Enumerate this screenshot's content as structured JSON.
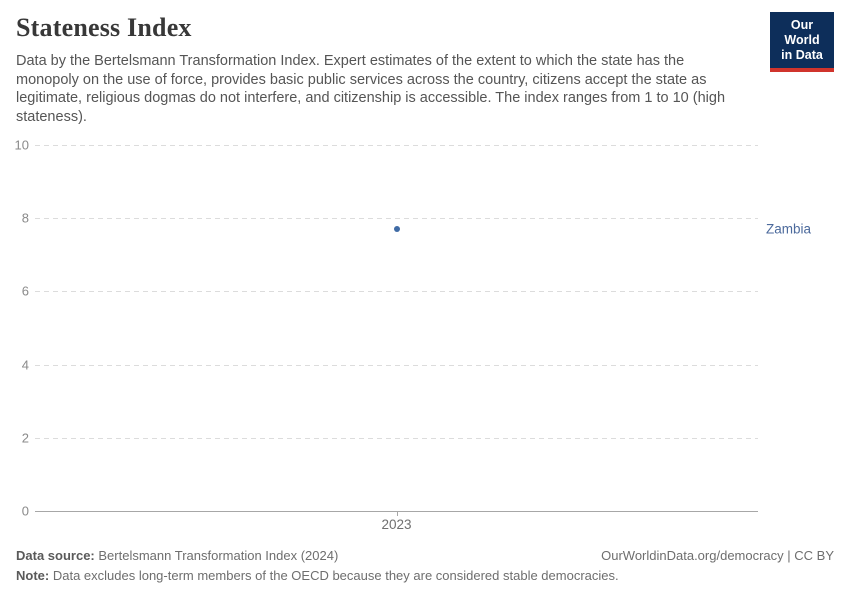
{
  "header": {
    "title": "Stateness Index",
    "subtitle": "Data by the Bertelsmann Transformation Index. Expert estimates of the extent to which the state has the monopoly on the use of force, provides basic public services across the country, citizens accept the state as legitimate, religious dogmas do not interfere, and citizenship is accessible. The index ranges from 1 to 10 (high stateness).",
    "logo": {
      "line1": "Our World",
      "line2": "in Data",
      "bg_color": "#0D2E5A",
      "accent_color": "#D0342C"
    }
  },
  "chart_data": {
    "type": "scatter",
    "title": "Stateness Index",
    "xlabel": "",
    "ylabel": "",
    "ylim": [
      0,
      10
    ],
    "yticks": [
      0,
      2,
      4,
      6,
      8,
      10
    ],
    "xticks": [
      "2023"
    ],
    "grid": "horizontal-dashed",
    "legend_position": "right-of-point",
    "series": [
      {
        "name": "Zambia",
        "x": "2023",
        "value": 7.7,
        "color": "#3F6BA5",
        "label_color": "#4C6A9C"
      }
    ]
  },
  "footer": {
    "source_label": "Data source:",
    "source_value": "Bertelsmann Transformation Index (2024)",
    "license": "OurWorldinData.org/democracy | CC BY",
    "note_label": "Note:",
    "note_value": "Data excludes long-term members of the OECD because they are considered stable democracies."
  }
}
